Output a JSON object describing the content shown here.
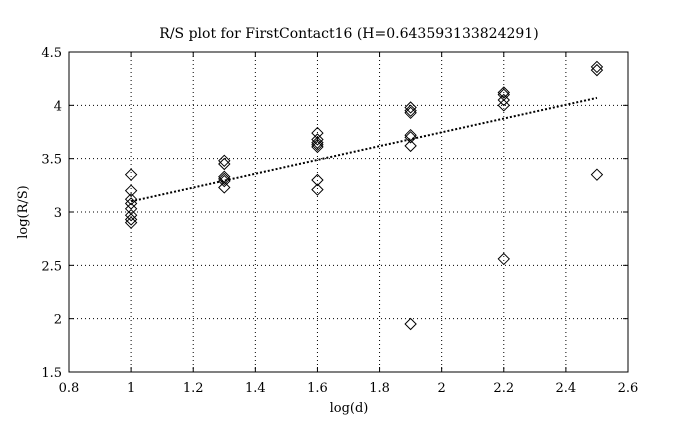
{
  "chart_data": {
    "type": "scatter",
    "title": "R/S plot for FirstContact16 (H=0.643593133824291)",
    "xlabel": "log(d)",
    "ylabel": "log(R/S)",
    "xlim": [
      0.8,
      2.6
    ],
    "ylim": [
      1.5,
      4.5
    ],
    "xticks": [
      "0.8",
      "1",
      "1.2",
      "1.4",
      "1.6",
      "1.8",
      "2",
      "2.2",
      "2.4",
      "2.6"
    ],
    "yticks": [
      "1.5",
      "2",
      "2.5",
      "3",
      "3.5",
      "4",
      "4.5"
    ],
    "grid": true,
    "marker": "diamond",
    "points": [
      {
        "x": 1.0,
        "y": 3.35
      },
      {
        "x": 1.0,
        "y": 3.2
      },
      {
        "x": 1.0,
        "y": 3.12
      },
      {
        "x": 1.0,
        "y": 3.08
      },
      {
        "x": 1.0,
        "y": 3.03
      },
      {
        "x": 1.0,
        "y": 2.97
      },
      {
        "x": 1.0,
        "y": 2.93
      },
      {
        "x": 1.0,
        "y": 2.9
      },
      {
        "x": 1.3,
        "y": 3.48
      },
      {
        "x": 1.3,
        "y": 3.45
      },
      {
        "x": 1.3,
        "y": 3.33
      },
      {
        "x": 1.3,
        "y": 3.31
      },
      {
        "x": 1.3,
        "y": 3.29
      },
      {
        "x": 1.3,
        "y": 3.23
      },
      {
        "x": 1.6,
        "y": 3.74
      },
      {
        "x": 1.6,
        "y": 3.68
      },
      {
        "x": 1.6,
        "y": 3.65
      },
      {
        "x": 1.6,
        "y": 3.63
      },
      {
        "x": 1.6,
        "y": 3.61
      },
      {
        "x": 1.6,
        "y": 3.3
      },
      {
        "x": 1.6,
        "y": 3.21
      },
      {
        "x": 1.9,
        "y": 3.98
      },
      {
        "x": 1.9,
        "y": 3.95
      },
      {
        "x": 1.9,
        "y": 3.93
      },
      {
        "x": 1.9,
        "y": 3.72
      },
      {
        "x": 1.9,
        "y": 3.7
      },
      {
        "x": 1.9,
        "y": 3.62
      },
      {
        "x": 1.9,
        "y": 1.95
      },
      {
        "x": 2.2,
        "y": 4.12
      },
      {
        "x": 2.2,
        "y": 4.1
      },
      {
        "x": 2.2,
        "y": 4.05
      },
      {
        "x": 2.2,
        "y": 4.0
      },
      {
        "x": 2.2,
        "y": 2.56
      },
      {
        "x": 2.5,
        "y": 4.36
      },
      {
        "x": 2.5,
        "y": 4.33
      },
      {
        "x": 2.5,
        "y": 3.35
      }
    ],
    "fit_line": {
      "x": [
        1.0,
        2.5
      ],
      "y": [
        3.1,
        4.07
      ]
    }
  }
}
